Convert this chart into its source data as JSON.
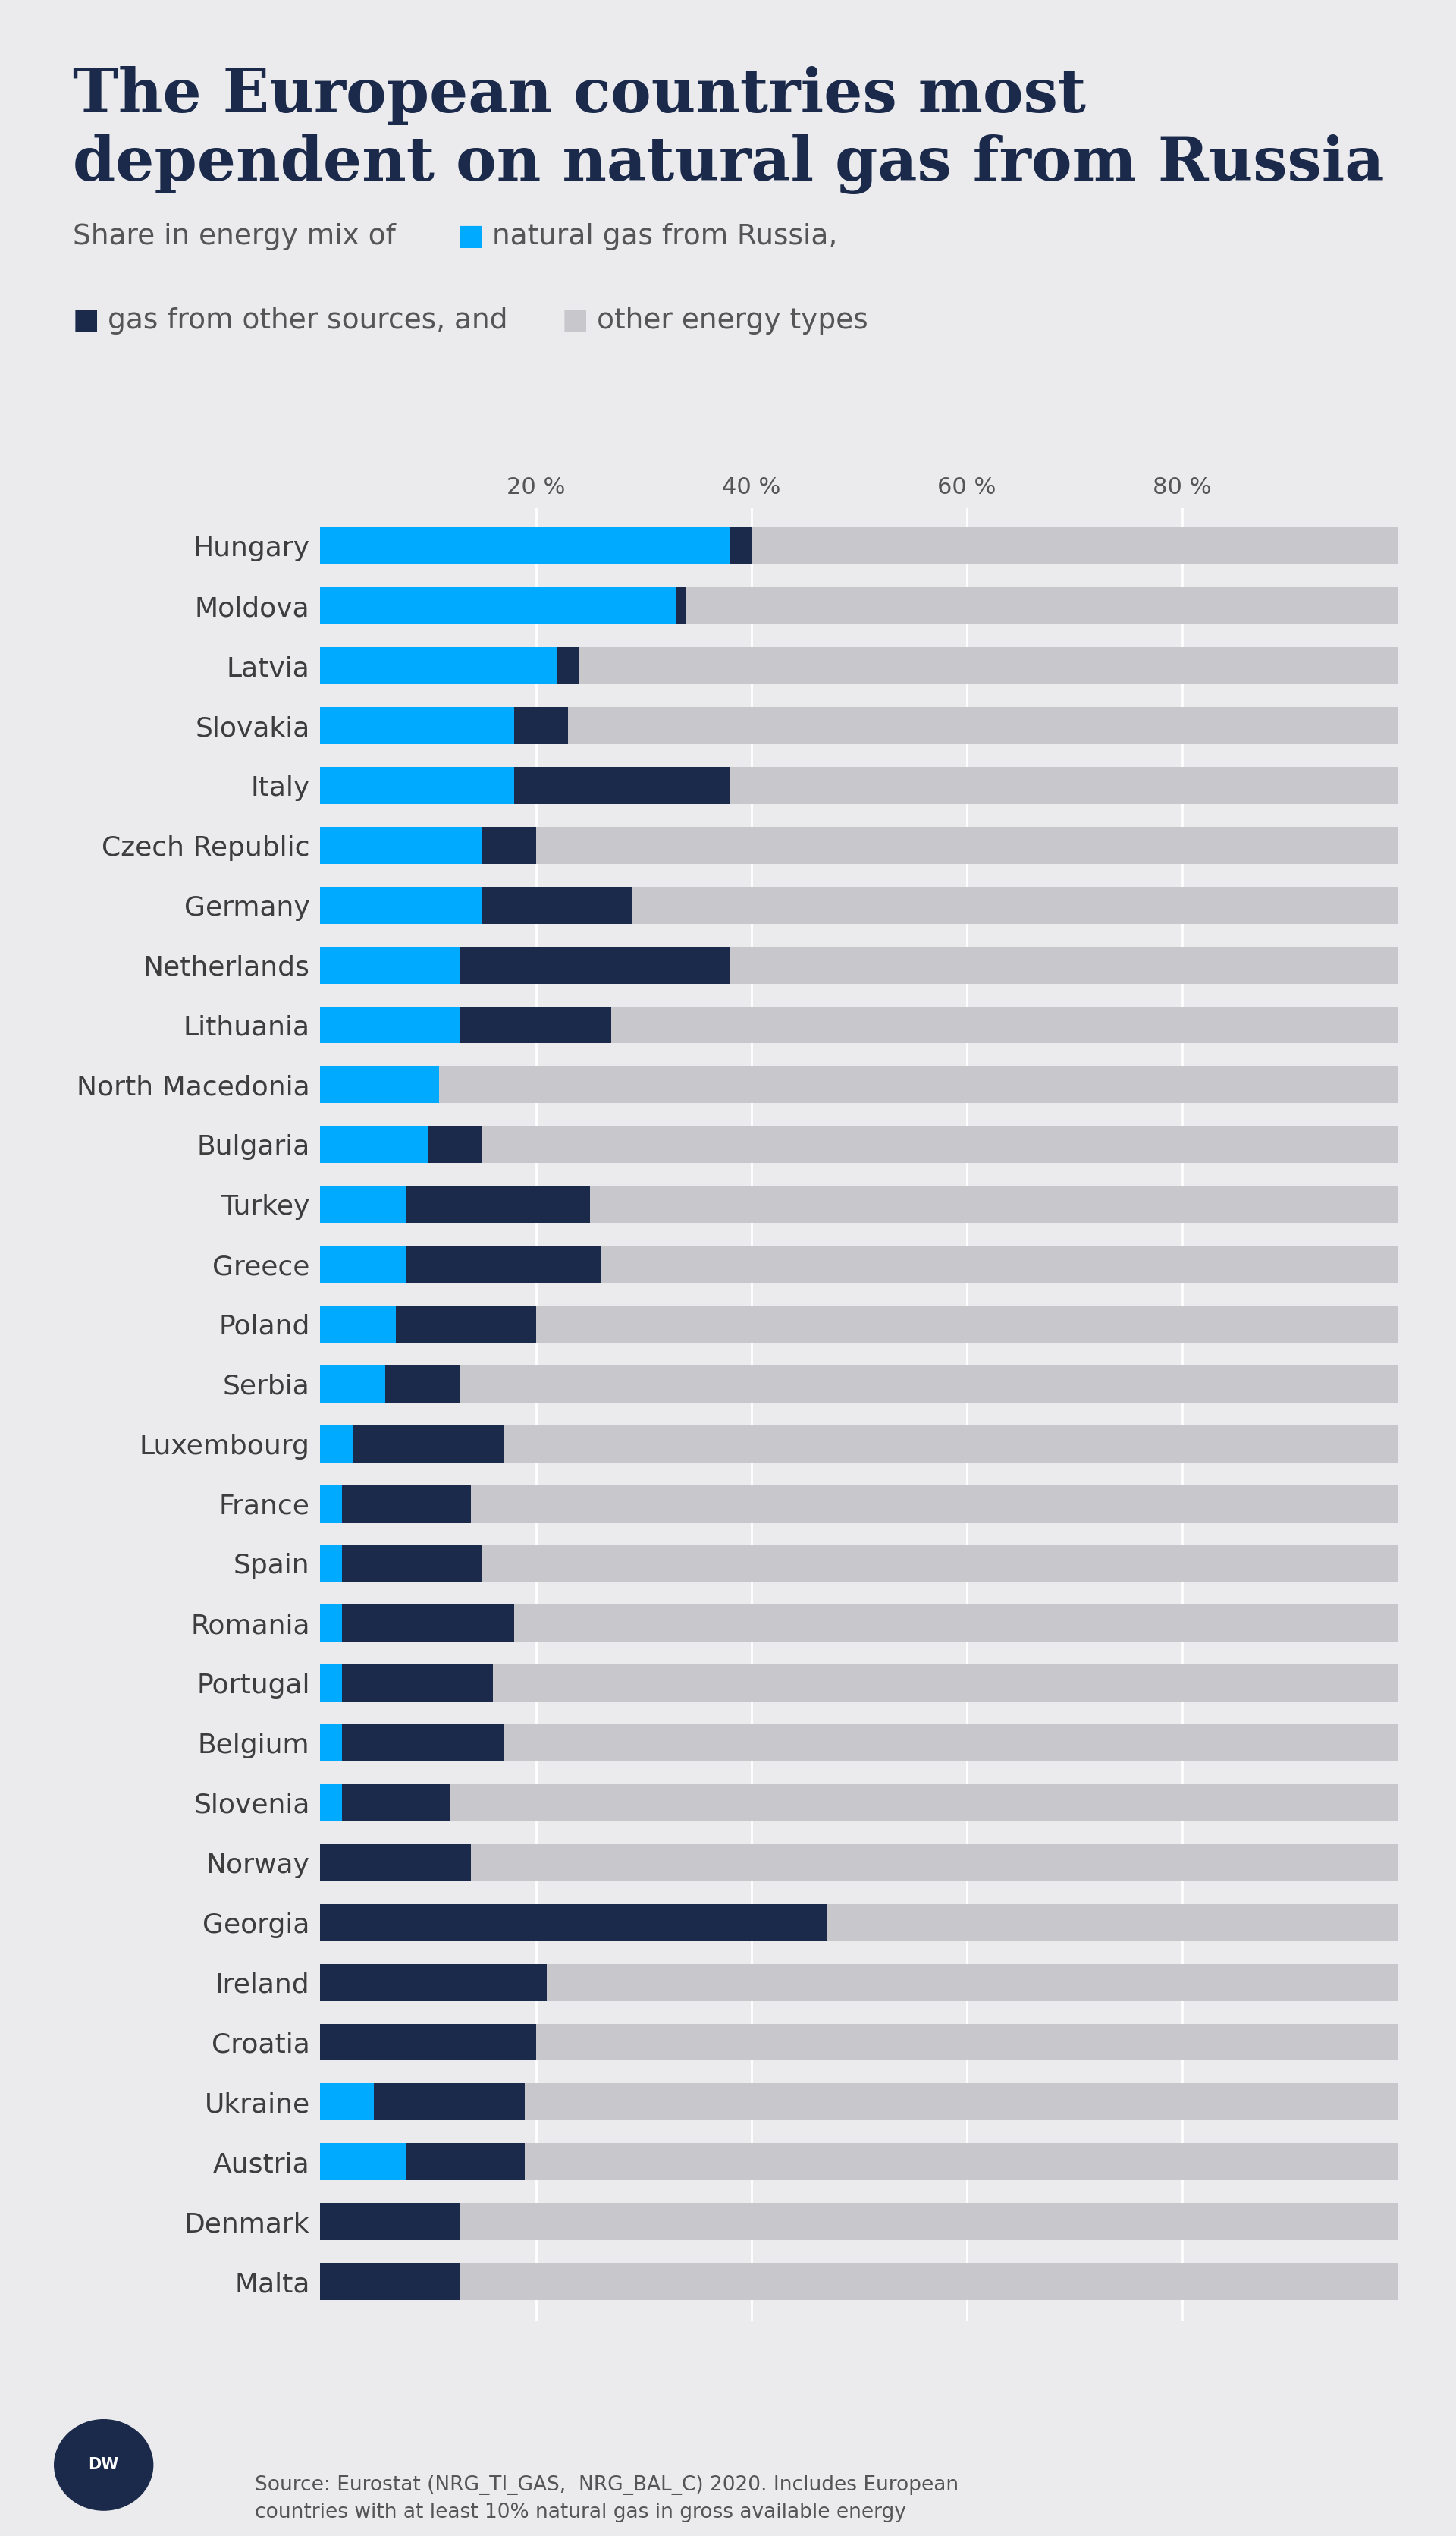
{
  "title_line1": "The European countries most",
  "title_line2": "dependent on natural gas from Russia",
  "countries": [
    "Hungary",
    "Moldova",
    "Latvia",
    "Slovakia",
    "Italy",
    "Czech Republic",
    "Germany",
    "Netherlands",
    "Lithuania",
    "North Macedonia",
    "Bulgaria",
    "Turkey",
    "Greece",
    "Poland",
    "Serbia",
    "Luxembourg",
    "France",
    "Spain",
    "Romania",
    "Portugal",
    "Belgium",
    "Slovenia",
    "Norway",
    "Georgia",
    "Ireland",
    "Croatia",
    "Ukraine",
    "Austria",
    "Denmark",
    "Malta"
  ],
  "russian_gas": [
    38,
    33,
    22,
    18,
    18,
    15,
    15,
    13,
    13,
    11,
    10,
    8,
    8,
    7,
    6,
    3,
    2,
    2,
    2,
    2,
    2,
    2,
    0,
    0,
    0,
    0,
    5,
    8,
    0,
    0
  ],
  "other_gas": [
    2,
    1,
    2,
    5,
    20,
    5,
    14,
    25,
    14,
    0,
    5,
    17,
    18,
    13,
    7,
    14,
    12,
    13,
    16,
    14,
    15,
    10,
    14,
    47,
    21,
    20,
    14,
    11,
    13,
    13
  ],
  "other_energy": [
    60,
    66,
    76,
    77,
    62,
    80,
    71,
    62,
    73,
    89,
    85,
    75,
    74,
    80,
    87,
    83,
    86,
    85,
    82,
    84,
    83,
    88,
    86,
    53,
    79,
    80,
    81,
    81,
    87,
    87
  ],
  "background_color": "#EBEBEE",
  "bar_height": 0.62,
  "russian_gas_color": "#00AAFF",
  "other_gas_color": "#1B2A4A",
  "other_energy_color": "#C8C8CC",
  "title_color": "#1B2A4A",
  "label_color": "#3D3D3D",
  "tick_color": "#555555",
  "source_text": "Source: Eurostat (NRG_TI_GAS,  NRG_BAL_C) 2020. Includes European\ncountries with at least 10% natural gas in gross available energy"
}
